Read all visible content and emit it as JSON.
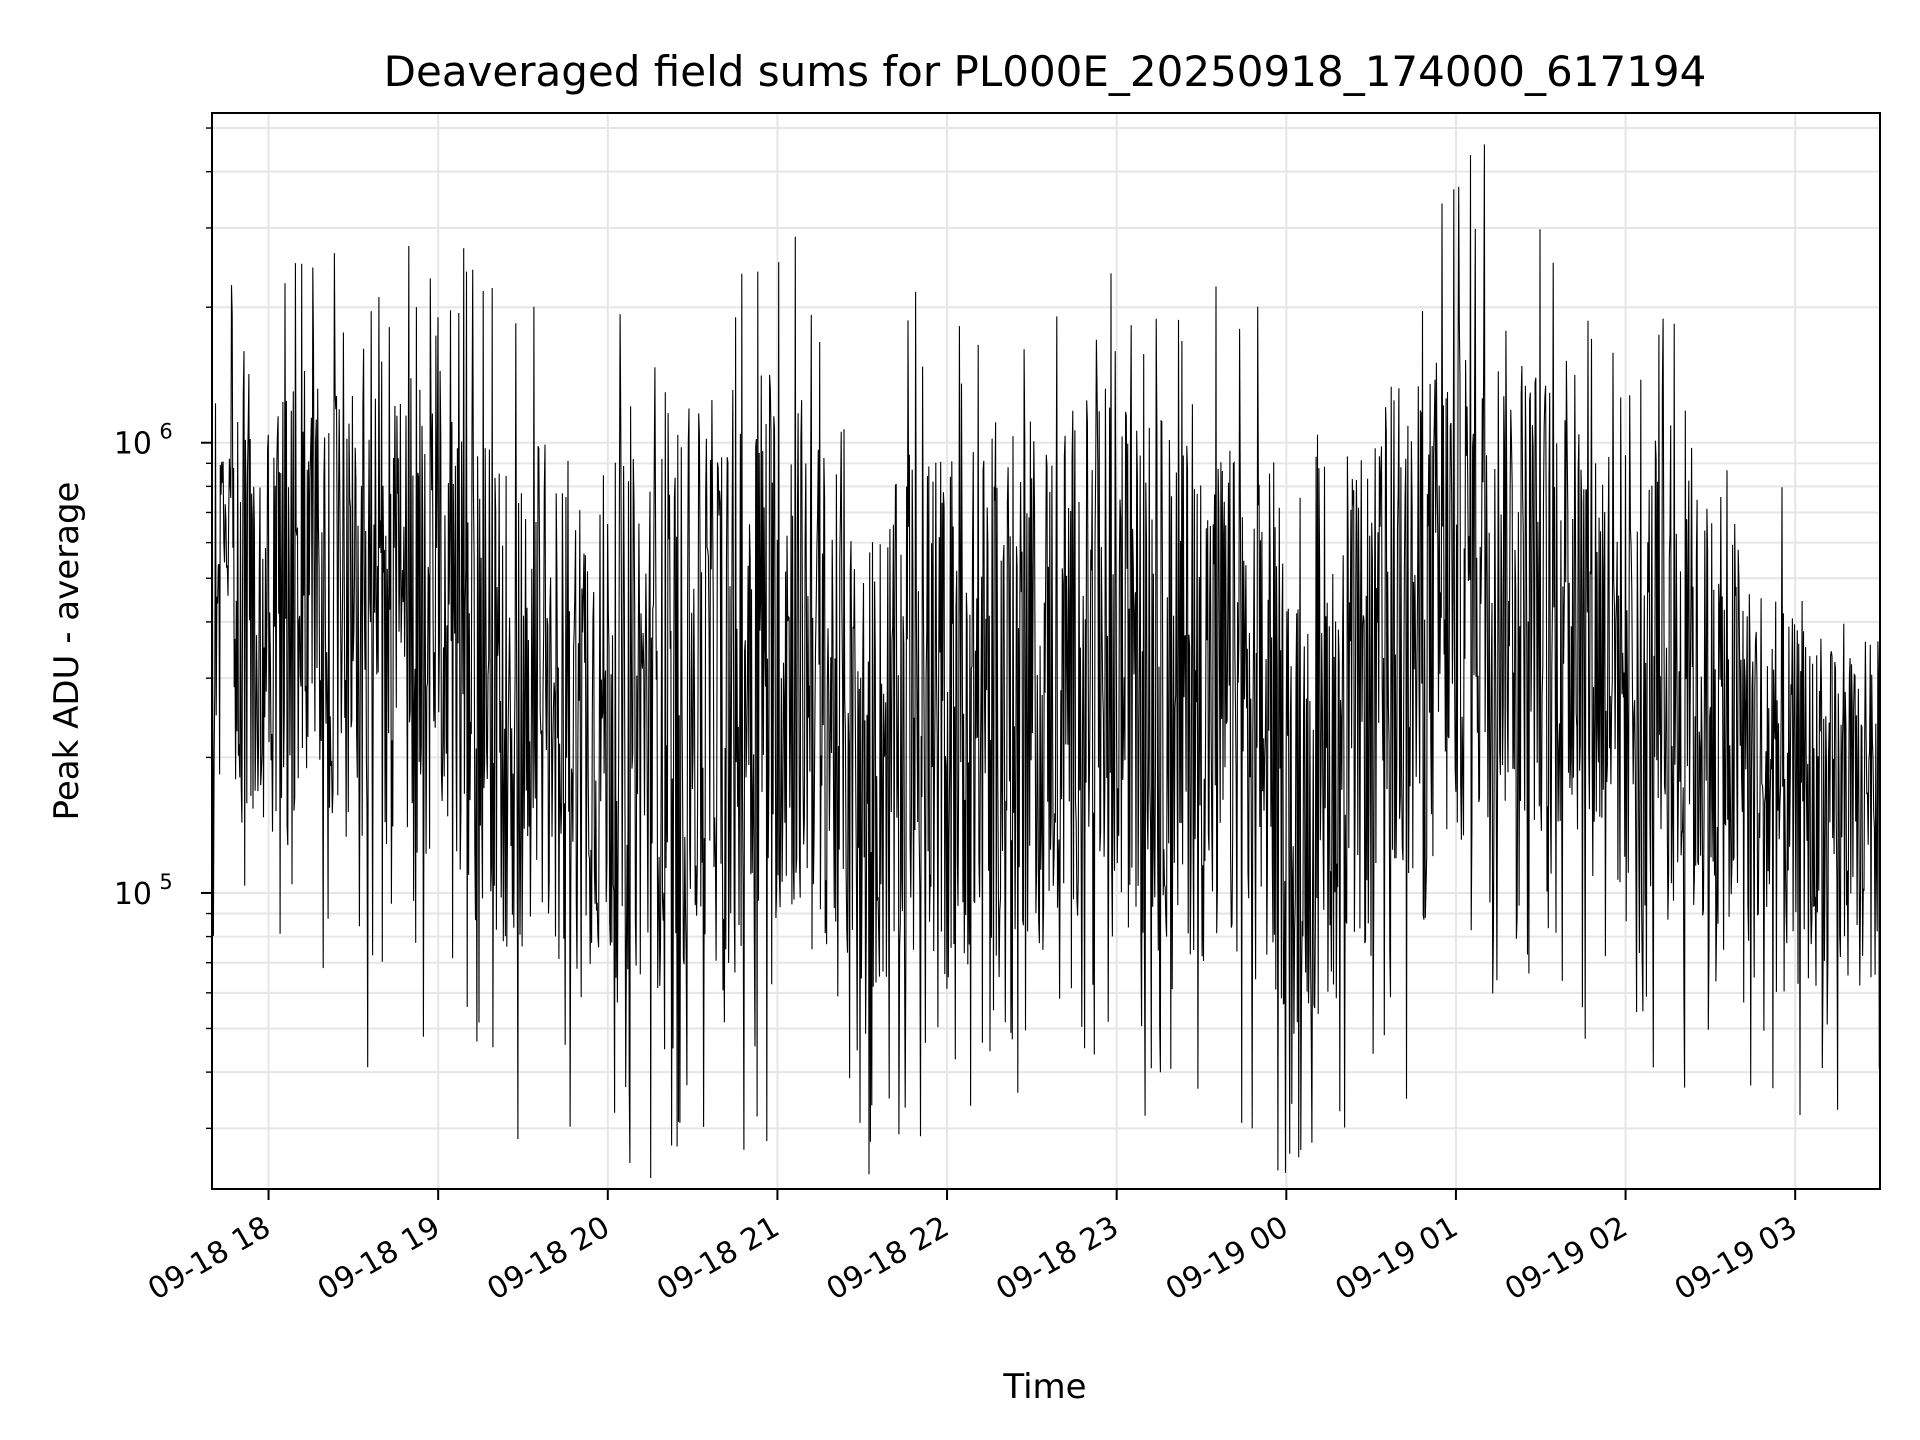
{
  "chart_data": {
    "type": "line",
    "title": "Deaveraged field sums for PL000E_20250918_174000_617194",
    "xlabel": "Time",
    "ylabel": "Peak ADU - average",
    "y_scale": "log",
    "ylim": [
      22000,
      5400000
    ],
    "xlim": [
      "2025-09-18 17:40",
      "2025-09-19 03:30"
    ],
    "grid": true,
    "line_color": "#000000",
    "x_tick_labels": [
      "09-18 18",
      "09-18 19",
      "09-18 20",
      "09-18 21",
      "09-18 22",
      "09-18 23",
      "09-19 00",
      "09-19 01",
      "09-19 02",
      "09-19 03"
    ],
    "x_tick_times": [
      "2025-09-18 18:00",
      "2025-09-18 19:00",
      "2025-09-18 20:00",
      "2025-09-18 21:00",
      "2025-09-18 22:00",
      "2025-09-18 23:00",
      "2025-09-19 00:00",
      "2025-09-19 01:00",
      "2025-09-19 02:00",
      "2025-09-19 03:00"
    ],
    "y_ticks": [
      {
        "value": 100000,
        "mantissa": "10",
        "exponent": "5"
      },
      {
        "value": 1000000,
        "mantissa": "10",
        "exponent": "6"
      }
    ],
    "envelope": [
      {
        "t": "2025-09-18 17:40",
        "lo": 120000,
        "hi": 1300000
      },
      {
        "t": "2025-09-18 18:00",
        "lo": 140000,
        "hi": 1400000
      },
      {
        "t": "2025-09-18 18:20",
        "lo": 140000,
        "hi": 1350000
      },
      {
        "t": "2025-09-18 18:40",
        "lo": 130000,
        "hi": 1300000
      },
      {
        "t": "2025-09-18 19:00",
        "lo": 110000,
        "hi": 1500000
      },
      {
        "t": "2025-09-18 19:20",
        "lo": 70000,
        "hi": 1000000
      },
      {
        "t": "2025-09-18 19:40",
        "lo": 70000,
        "hi": 1000000
      },
      {
        "t": "2025-09-18 20:00",
        "lo": 65000,
        "hi": 900000
      },
      {
        "t": "2025-09-18 20:20",
        "lo": 60000,
        "hi": 1000000
      },
      {
        "t": "2025-09-18 20:40",
        "lo": 70000,
        "hi": 1300000
      },
      {
        "t": "2025-09-18 20:55",
        "lo": 80000,
        "hi": 1700000
      },
      {
        "t": "2025-09-18 21:10",
        "lo": 90000,
        "hi": 1300000
      },
      {
        "t": "2025-09-18 21:30",
        "lo": 55000,
        "hi": 600000
      },
      {
        "t": "2025-09-18 21:50",
        "lo": 60000,
        "hi": 1000000
      },
      {
        "t": "2025-09-18 22:10",
        "lo": 70000,
        "hi": 1000000
      },
      {
        "t": "2025-09-18 22:30",
        "lo": 80000,
        "hi": 1100000
      },
      {
        "t": "2025-09-18 22:50",
        "lo": 90000,
        "hi": 1300000
      },
      {
        "t": "2025-09-18 23:10",
        "lo": 80000,
        "hi": 1200000
      },
      {
        "t": "2025-09-18 23:30",
        "lo": 70000,
        "hi": 1100000
      },
      {
        "t": "2025-09-18 23:50",
        "lo": 60000,
        "hi": 900000
      },
      {
        "t": "2025-09-19 00:05",
        "lo": 50000,
        "hi": 500000
      },
      {
        "t": "2025-09-19 00:25",
        "lo": 70000,
        "hi": 900000
      },
      {
        "t": "2025-09-19 00:45",
        "lo": 90000,
        "hi": 1300000
      },
      {
        "t": "2025-09-19 01:00",
        "lo": 120000,
        "hi": 2000000
      },
      {
        "t": "2025-09-19 01:20",
        "lo": 150000,
        "hi": 1800000
      },
      {
        "t": "2025-09-19 01:40",
        "lo": 120000,
        "hi": 1400000
      },
      {
        "t": "2025-09-19 02:00",
        "lo": 90000,
        "hi": 1100000
      },
      {
        "t": "2025-09-19 02:20",
        "lo": 80000,
        "hi": 900000
      },
      {
        "t": "2025-09-19 02:40",
        "lo": 70000,
        "hi": 700000
      },
      {
        "t": "2025-09-19 03:00",
        "lo": 60000,
        "hi": 400000
      },
      {
        "t": "2025-09-19 03:30",
        "lo": 60000,
        "hi": 300000
      }
    ],
    "extremes": [
      {
        "t": "2025-09-18 18:35",
        "value": 1900000
      },
      {
        "t": "2025-09-18 19:00",
        "value": 1900000
      },
      {
        "t": "2025-09-18 19:10",
        "value": 2400000
      },
      {
        "t": "2025-09-18 20:53",
        "value": 2400000
      },
      {
        "t": "2025-09-19 00:55",
        "value": 3400000
      },
      {
        "t": "2025-09-19 01:10",
        "value": 4600000
      },
      {
        "t": "2025-09-19 01:01",
        "value": 3700000
      },
      {
        "t": "2025-09-18 18:35",
        "value": 41000
      },
      {
        "t": "2025-09-18 20:25",
        "value": 31000
      },
      {
        "t": "2025-09-18 21:33",
        "value": 28000
      },
      {
        "t": "2025-09-18 22:25",
        "value": 36000
      },
      {
        "t": "2025-09-18 23:10",
        "value": 32000
      },
      {
        "t": "2025-09-18 23:48",
        "value": 30000
      },
      {
        "t": "2025-09-19 00:02",
        "value": 34000
      },
      {
        "t": "2025-09-19 03:15",
        "value": 33000
      }
    ]
  }
}
